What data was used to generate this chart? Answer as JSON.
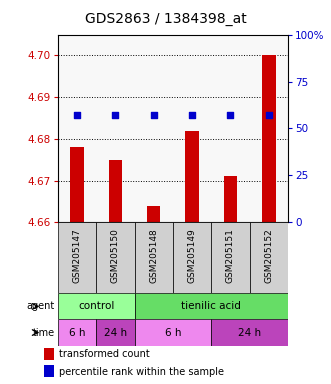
{
  "title": "GDS2863 / 1384398_at",
  "samples": [
    "GSM205147",
    "GSM205150",
    "GSM205148",
    "GSM205149",
    "GSM205151",
    "GSM205152"
  ],
  "bar_values": [
    4.678,
    4.675,
    4.664,
    4.682,
    4.671,
    4.7
  ],
  "bar_base": 4.66,
  "percentile_values": [
    57,
    57,
    57,
    57,
    57,
    57
  ],
  "ylim_left": [
    4.66,
    4.705
  ],
  "ylim_right": [
    0,
    100
  ],
  "yticks_left": [
    4.66,
    4.67,
    4.68,
    4.69,
    4.7
  ],
  "yticks_right": [
    0,
    25,
    50,
    75,
    100
  ],
  "bar_color": "#cc0000",
  "dot_color": "#0000cc",
  "agent_row": [
    {
      "label": "control",
      "start": 0,
      "end": 2,
      "color": "#99ff99"
    },
    {
      "label": "tienilic acid",
      "start": 2,
      "end": 6,
      "color": "#66dd66"
    }
  ],
  "time_row": [
    {
      "label": "6 h",
      "start": 0,
      "end": 1,
      "color": "#ee88ee"
    },
    {
      "label": "24 h",
      "start": 1,
      "end": 2,
      "color": "#bb44bb"
    },
    {
      "label": "6 h",
      "start": 2,
      "end": 4,
      "color": "#ee88ee"
    },
    {
      "label": "24 h",
      "start": 4,
      "end": 6,
      "color": "#bb44bb"
    }
  ],
  "legend_items": [
    {
      "label": "transformed count",
      "color": "#cc0000"
    },
    {
      "label": "percentile rank within the sample",
      "color": "#0000cc"
    }
  ],
  "axis_color_left": "#cc0000",
  "axis_color_right": "#0000cc",
  "title_fontsize": 10,
  "tick_fontsize": 7.5,
  "sample_label_fontsize": 6.5,
  "row_fontsize": 7.5,
  "legend_fontsize": 7,
  "plot_bg": "#f8f8f8",
  "sample_bg": "#d0d0d0"
}
